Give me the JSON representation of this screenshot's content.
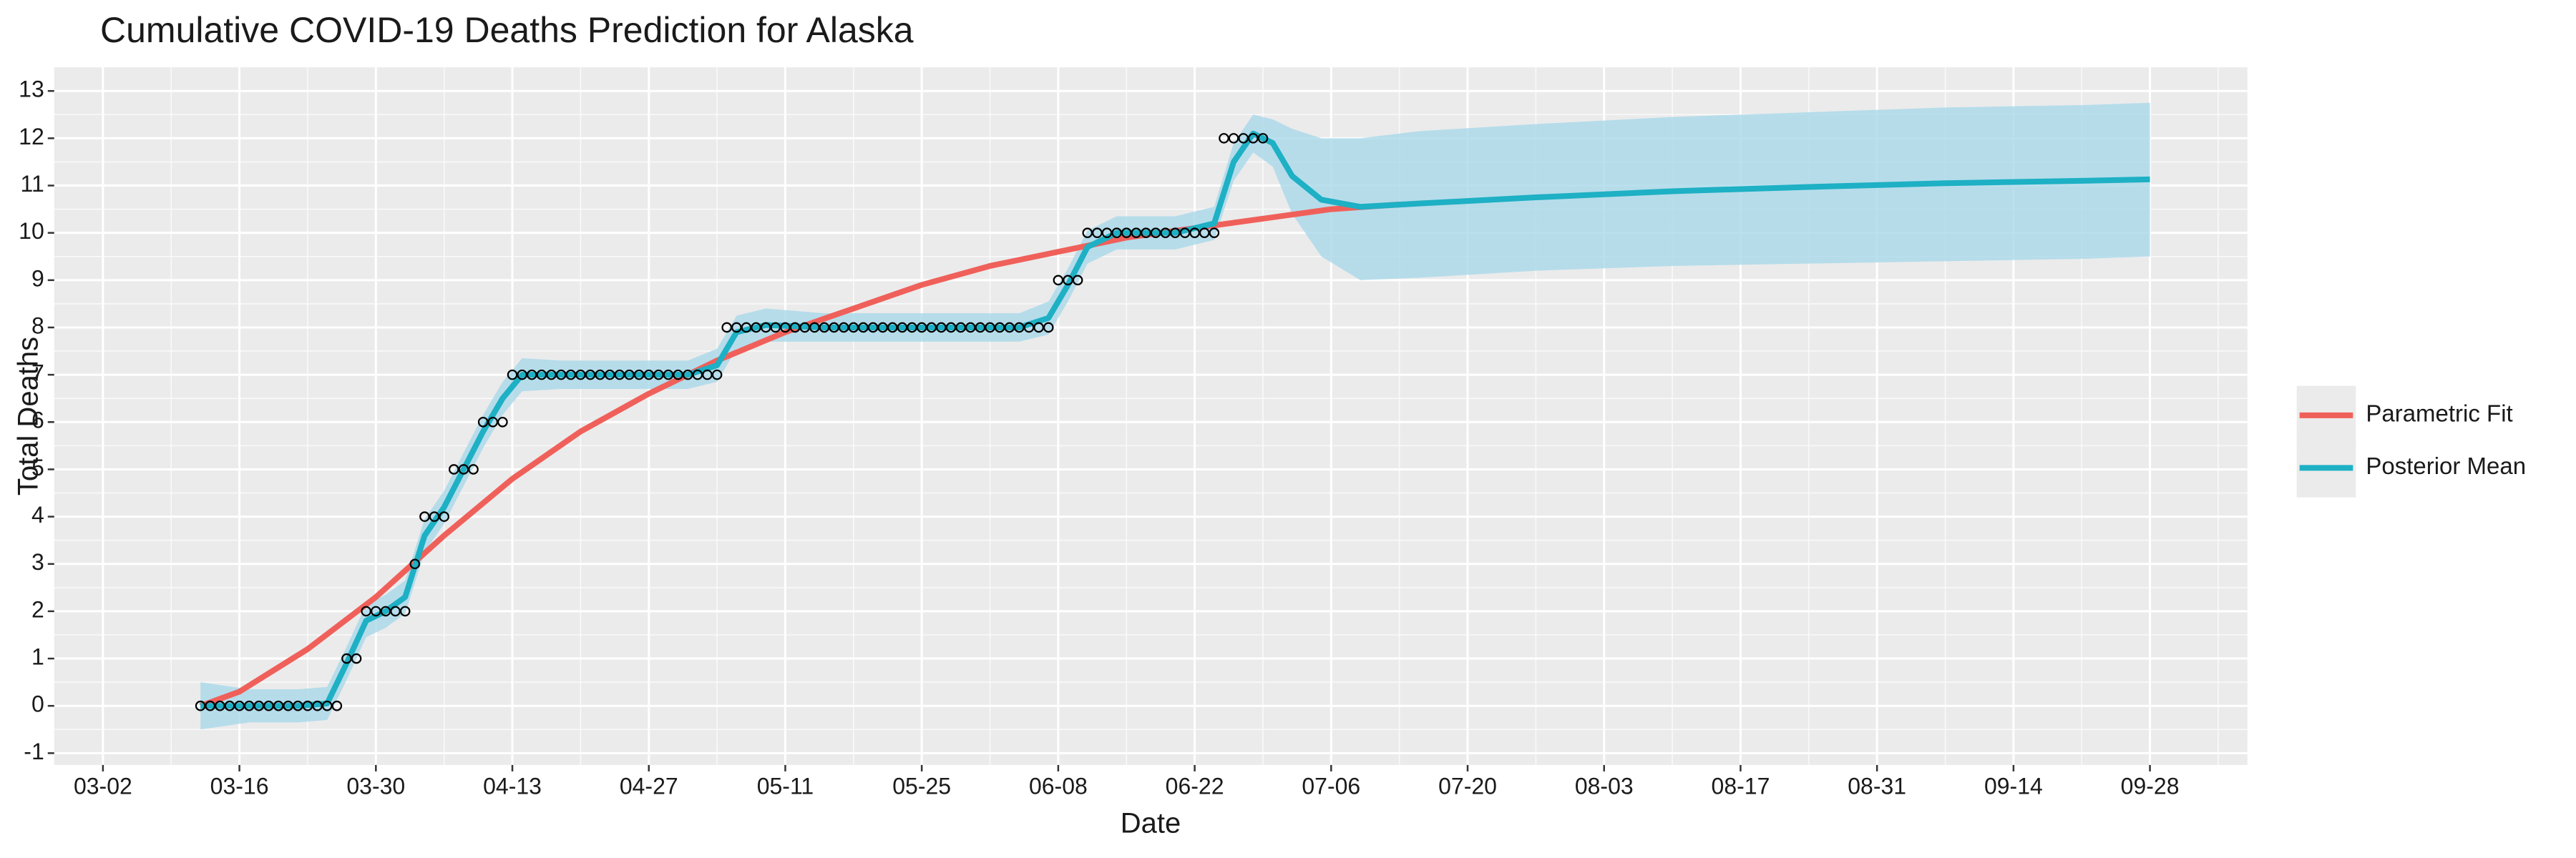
{
  "chart_data": {
    "type": "line",
    "title": "Cumulative COVID-19 Deaths Prediction for Alaska",
    "x_label": "Date",
    "y_label": "Total Deaths",
    "xlim": [
      "02-26",
      "10-08"
    ],
    "xticks": [
      "03-02",
      "03-16",
      "03-30",
      "04-13",
      "04-27",
      "05-11",
      "05-25",
      "06-08",
      "06-22",
      "07-06",
      "07-20",
      "08-03",
      "08-17",
      "08-31",
      "09-14",
      "09-28"
    ],
    "ylim": [
      -1.25,
      13.5
    ],
    "yticks": [
      -1,
      0,
      1,
      2,
      3,
      4,
      5,
      6,
      7,
      8,
      9,
      10,
      11,
      12,
      13
    ],
    "grid": true,
    "legend_position": "right",
    "series": [
      {
        "name": "Parametric Fit",
        "color": "#f0605a",
        "x": [
          "03-12",
          "03-16",
          "03-23",
          "03-30",
          "04-06",
          "04-13",
          "04-20",
          "04-27",
          "05-04",
          "05-11",
          "05-18",
          "05-25",
          "06-01",
          "06-08",
          "06-15",
          "06-22",
          "06-29",
          "07-06",
          "07-13"
        ],
        "values": [
          0,
          0.3,
          1.2,
          2.3,
          3.6,
          4.8,
          5.8,
          6.6,
          7.3,
          7.9,
          8.4,
          8.9,
          9.3,
          9.6,
          9.9,
          10.1,
          10.3,
          10.5,
          10.6
        ]
      },
      {
        "name": "Posterior Mean",
        "color": "#1eb0c4",
        "band_color": "#a9d8ea",
        "x": [
          "03-12",
          "03-17",
          "03-22",
          "03-25",
          "03-27",
          "03-29",
          "03-31",
          "04-02",
          "04-04",
          "04-06",
          "04-08",
          "04-10",
          "04-12",
          "04-14",
          "04-18",
          "04-25",
          "05-01",
          "05-04",
          "05-06",
          "05-09",
          "05-15",
          "05-25",
          "06-04",
          "06-07",
          "06-09",
          "06-11",
          "06-14",
          "06-20",
          "06-24",
          "06-26",
          "06-28",
          "06-30",
          "07-02",
          "07-05",
          "07-09",
          "07-15",
          "07-27",
          "08-10",
          "08-24",
          "09-07",
          "09-21",
          "09-28"
        ],
        "values": [
          0,
          0,
          0,
          0.05,
          0.9,
          1.8,
          2.0,
          2.3,
          3.6,
          4.2,
          5.0,
          5.8,
          6.5,
          7.0,
          7.0,
          7.0,
          7.0,
          7.2,
          7.9,
          8.05,
          8.0,
          8.0,
          8.0,
          8.2,
          8.9,
          9.7,
          10.0,
          10.0,
          10.2,
          11.5,
          12.1,
          11.9,
          11.2,
          10.7,
          10.55,
          10.62,
          10.75,
          10.88,
          10.97,
          11.05,
          11.1,
          11.13
        ],
        "lower": [
          -0.5,
          -0.35,
          -0.35,
          -0.3,
          0.55,
          1.45,
          1.65,
          1.95,
          3.25,
          3.85,
          4.65,
          5.45,
          6.15,
          6.65,
          6.7,
          6.7,
          6.7,
          6.85,
          7.55,
          7.7,
          7.7,
          7.7,
          7.7,
          7.85,
          8.55,
          9.35,
          9.65,
          9.65,
          9.85,
          11.1,
          11.7,
          11.4,
          10.4,
          9.5,
          9.0,
          9.05,
          9.2,
          9.3,
          9.35,
          9.4,
          9.45,
          9.5
        ],
        "upper": [
          0.5,
          0.35,
          0.35,
          0.4,
          1.25,
          2.15,
          2.35,
          2.65,
          3.95,
          4.55,
          5.35,
          6.15,
          6.85,
          7.35,
          7.3,
          7.3,
          7.3,
          7.55,
          8.25,
          8.4,
          8.3,
          8.3,
          8.3,
          8.55,
          9.25,
          10.05,
          10.35,
          10.35,
          10.55,
          11.9,
          12.5,
          12.4,
          12.2,
          12.0,
          12.0,
          12.15,
          12.3,
          12.45,
          12.55,
          12.65,
          12.7,
          12.75
        ]
      }
    ],
    "observed": {
      "x": [
        "03-12",
        "03-13",
        "03-14",
        "03-15",
        "03-16",
        "03-17",
        "03-18",
        "03-19",
        "03-20",
        "03-21",
        "03-22",
        "03-23",
        "03-24",
        "03-25",
        "03-26",
        "03-27",
        "03-28",
        "03-29",
        "03-30",
        "03-31",
        "04-01",
        "04-02",
        "04-03",
        "04-04",
        "04-05",
        "04-06",
        "04-07",
        "04-08",
        "04-09",
        "04-10",
        "04-11",
        "04-12",
        "04-13",
        "04-14",
        "04-15",
        "04-16",
        "04-17",
        "04-18",
        "04-19",
        "04-20",
        "04-21",
        "04-22",
        "04-23",
        "04-24",
        "04-25",
        "04-26",
        "04-27",
        "04-28",
        "04-29",
        "04-30",
        "05-01",
        "05-02",
        "05-03",
        "05-04",
        "05-05",
        "05-06",
        "05-07",
        "05-08",
        "05-09",
        "05-10",
        "05-11",
        "05-12",
        "05-13",
        "05-14",
        "05-15",
        "05-16",
        "05-17",
        "05-18",
        "05-19",
        "05-20",
        "05-21",
        "05-22",
        "05-23",
        "05-24",
        "05-25",
        "05-26",
        "05-27",
        "05-28",
        "05-29",
        "05-30",
        "05-31",
        "06-01",
        "06-02",
        "06-03",
        "06-04",
        "06-05",
        "06-06",
        "06-07",
        "06-08",
        "06-09",
        "06-10",
        "06-11",
        "06-12",
        "06-13",
        "06-14",
        "06-15",
        "06-16",
        "06-17",
        "06-18",
        "06-19",
        "06-20",
        "06-21",
        "06-22",
        "06-23",
        "06-24",
        "06-25",
        "06-26",
        "06-27",
        "06-28",
        "06-29"
      ],
      "values": [
        0,
        0,
        0,
        0,
        0,
        0,
        0,
        0,
        0,
        0,
        0,
        0,
        0,
        0,
        0,
        1,
        1,
        2,
        2,
        2,
        2,
        2,
        3,
        4,
        4,
        4,
        5,
        5,
        5,
        6,
        6,
        6,
        7,
        7,
        7,
        7,
        7,
        7,
        7,
        7,
        7,
        7,
        7,
        7,
        7,
        7,
        7,
        7,
        7,
        7,
        7,
        7,
        7,
        7,
        8,
        8,
        8,
        8,
        8,
        8,
        8,
        8,
        8,
        8,
        8,
        8,
        8,
        8,
        8,
        8,
        8,
        8,
        8,
        8,
        8,
        8,
        8,
        8,
        8,
        8,
        8,
        8,
        8,
        8,
        8,
        8,
        8,
        8,
        9,
        9,
        9,
        10,
        10,
        10,
        10,
        10,
        10,
        10,
        10,
        10,
        10,
        10,
        10,
        10,
        10,
        12,
        12,
        12,
        12,
        12
      ]
    }
  }
}
